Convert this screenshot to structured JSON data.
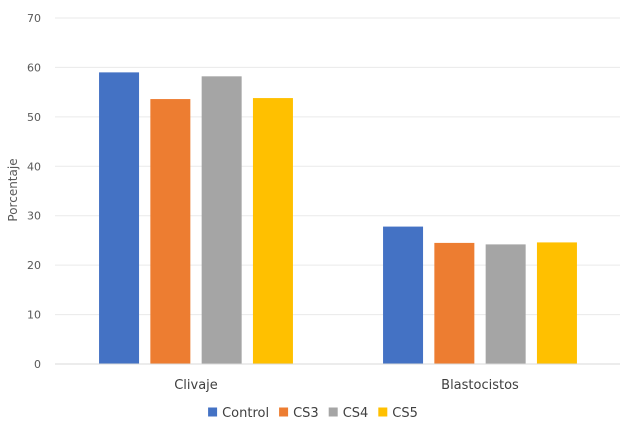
{
  "chart_data": {
    "type": "bar",
    "title": "",
    "xlabel": "",
    "ylabel": "Porcentaje",
    "ylim": [
      0,
      70
    ],
    "yticks": [
      0,
      10,
      20,
      30,
      40,
      50,
      60,
      70
    ],
    "categories": [
      "Clivaje",
      "Blastocistos"
    ],
    "series": [
      {
        "name": "Control",
        "color": "#4472C4",
        "values": [
          59,
          27.8
        ]
      },
      {
        "name": "CS3",
        "color": "#ED7D31",
        "values": [
          53.6,
          24.5
        ]
      },
      {
        "name": "CS4",
        "color": "#A5A5A5",
        "values": [
          58.2,
          24.2
        ]
      },
      {
        "name": "CS5",
        "color": "#FFC000",
        "values": [
          53.8,
          24.6
        ]
      }
    ],
    "grid": true,
    "legend_position": "bottom"
  }
}
